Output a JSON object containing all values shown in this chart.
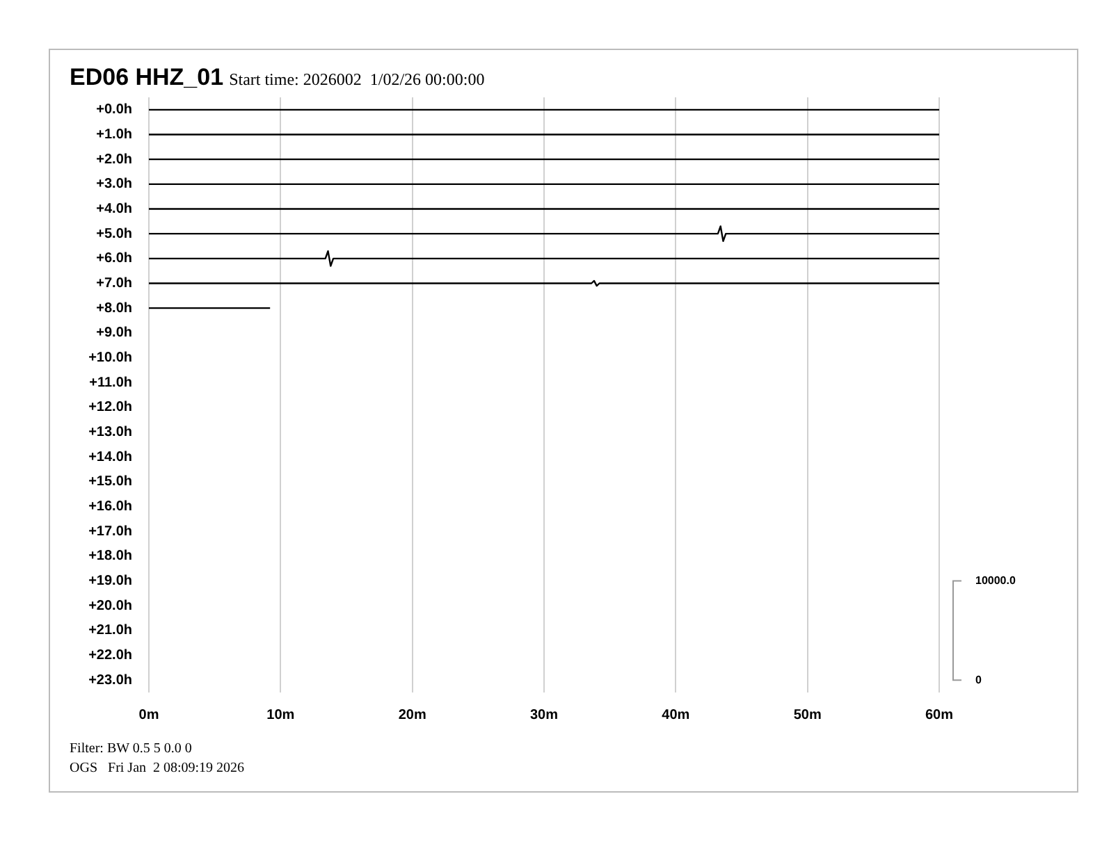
{
  "chart_data": {
    "type": "line",
    "title": "ED06 HHZ_01",
    "subtitle": "Start time: 2026002  1/02/26 00:00:00",
    "xlim": [
      0,
      60
    ],
    "xticks": [
      {
        "value": 0,
        "label": "0m"
      },
      {
        "value": 10,
        "label": "10m"
      },
      {
        "value": 20,
        "label": "20m"
      },
      {
        "value": 30,
        "label": "30m"
      },
      {
        "value": 40,
        "label": "40m"
      },
      {
        "value": 50,
        "label": "50m"
      },
      {
        "value": 60,
        "label": "60m"
      }
    ],
    "ylim": [
      23.5,
      -0.5
    ],
    "yticks": [
      {
        "value": 0,
        "label": "+0.0h"
      },
      {
        "value": 1,
        "label": "+1.0h"
      },
      {
        "value": 2,
        "label": "+2.0h"
      },
      {
        "value": 3,
        "label": "+3.0h"
      },
      {
        "value": 4,
        "label": "+4.0h"
      },
      {
        "value": 5,
        "label": "+5.0h"
      },
      {
        "value": 6,
        "label": "+6.0h"
      },
      {
        "value": 7,
        "label": "+7.0h"
      },
      {
        "value": 8,
        "label": "+8.0h"
      },
      {
        "value": 9,
        "label": "+9.0h"
      },
      {
        "value": 10,
        "label": "+10.0h"
      },
      {
        "value": 11,
        "label": "+11.0h"
      },
      {
        "value": 12,
        "label": "+12.0h"
      },
      {
        "value": 13,
        "label": "+13.0h"
      },
      {
        "value": 14,
        "label": "+14.0h"
      },
      {
        "value": 15,
        "label": "+15.0h"
      },
      {
        "value": 16,
        "label": "+16.0h"
      },
      {
        "value": 17,
        "label": "+17.0h"
      },
      {
        "value": 18,
        "label": "+18.0h"
      },
      {
        "value": 19,
        "label": "+19.0h"
      },
      {
        "value": 20,
        "label": "+20.0h"
      },
      {
        "value": 21,
        "label": "+21.0h"
      },
      {
        "value": 22,
        "label": "+22.0h"
      },
      {
        "value": 23,
        "label": "+23.0h"
      }
    ],
    "y2lim": [
      -1250,
      58750
    ],
    "y2ticks": [
      {
        "value": 0,
        "label": "0"
      },
      {
        "value": 10000,
        "label": "10000.0"
      }
    ],
    "grid": "x",
    "legend": false,
    "marker": "none",
    "line_style": "solid",
    "series": [
      {
        "color": "#000000",
        "x": [
          0,
          60
        ],
        "values": [
          0,
          0
        ]
      },
      {
        "color": "#000000",
        "x": [
          0,
          60
        ],
        "values": [
          1,
          1
        ]
      },
      {
        "color": "#000000",
        "x": [
          0,
          60
        ],
        "values": [
          2,
          2
        ]
      },
      {
        "color": "#000000",
        "x": [
          0,
          60
        ],
        "values": [
          3,
          3
        ]
      },
      {
        "color": "#000000",
        "x": [
          0,
          60
        ],
        "values": [
          4,
          4
        ]
      },
      {
        "color": "#000000",
        "x": [
          0,
          43.2,
          43.4,
          43.6,
          43.8,
          60
        ],
        "values": [
          5,
          5,
          4.7,
          5.3,
          5,
          5
        ]
      },
      {
        "color": "#000000",
        "x": [
          0,
          13.4,
          13.6,
          13.8,
          14.0,
          60
        ],
        "values": [
          6,
          6,
          5.7,
          6.3,
          6,
          6
        ]
      },
      {
        "color": "#000000",
        "x": [
          0,
          33.6,
          33.8,
          34.0,
          34.2,
          60
        ],
        "values": [
          7,
          7,
          6.9,
          7.1,
          7,
          7
        ]
      },
      {
        "color": "#000000",
        "x": [
          0,
          9.2
        ],
        "values": [
          8,
          8
        ]
      }
    ],
    "annotations": [
      "Filter: BW 0.5 5 0.0 0",
      "OGS   Fri Jan  2 08:09:19 2026"
    ]
  }
}
